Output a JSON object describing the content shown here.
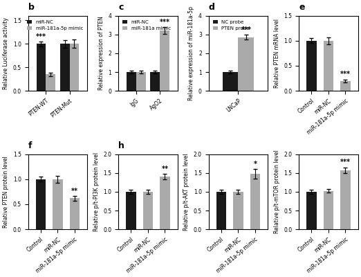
{
  "chart_data": [
    {
      "type": "bar",
      "title": "b",
      "categories": [
        "PTEN-WT",
        "PTEN-Mut"
      ],
      "ylabel": "Relative Luciferase activity",
      "ylim": [
        0,
        1.6
      ],
      "yticks": [
        {
          "value": 0,
          "label": "0.0"
        },
        0.5,
        {
          "value": 1,
          "label": "1.0"
        },
        1.5
      ],
      "legend": "upper right",
      "series": [
        {
          "name": "miR-NC",
          "color": "#1a1a1a",
          "values": [
            1.0,
            1.0
          ],
          "errors": [
            0.05,
            0.08
          ],
          "annotations": [
            "***",
            null
          ]
        },
        {
          "name": "miR-181a-5p mimic",
          "color": "#aaaaaa",
          "values": [
            0.35,
            1.0
          ],
          "errors": [
            0.04,
            0.09
          ],
          "annotations": [
            null,
            null
          ]
        }
      ]
    },
    {
      "type": "bar",
      "title": "c",
      "categories": [
        "IgG",
        "AgO2"
      ],
      "ylabel": "Relative expression of PTEN",
      "ylim": [
        0,
        4
      ],
      "yticks": [
        0,
        1,
        2,
        3,
        4
      ],
      "legend": "upper left",
      "series": [
        {
          "name": "miR-NC",
          "color": "#1a1a1a",
          "values": [
            1.0,
            1.0
          ],
          "errors": [
            0.08,
            0.07
          ],
          "annotations": [
            null,
            null
          ]
        },
        {
          "name": "miR-181a mimic",
          "color": "#aaaaaa",
          "values": [
            1.0,
            3.2
          ],
          "errors": [
            0.06,
            0.18
          ],
          "annotations": [
            null,
            "***"
          ]
        }
      ]
    },
    {
      "type": "bar",
      "title": "d",
      "categories": [
        "LNCaP"
      ],
      "ylabel": "Relative expression of miR-181a-5p",
      "ylim": [
        0,
        4
      ],
      "yticks": [
        0,
        1,
        2,
        3,
        4
      ],
      "legend": "upper left",
      "series": [
        {
          "name": "NC probe",
          "color": "#1a1a1a",
          "values": [
            1.0
          ],
          "errors": [
            0.07
          ],
          "annotations": [
            null
          ]
        },
        {
          "name": "PTEN probe",
          "color": "#aaaaaa",
          "values": [
            2.85
          ],
          "errors": [
            0.12
          ],
          "annotations": [
            "***"
          ]
        }
      ]
    },
    {
      "type": "bar",
      "title": "e",
      "categories": [
        "Control",
        "miR-NC",
        "miR-181a-5p mimic"
      ],
      "ylabel": "Relative PTEN mRNA level",
      "ylim": [
        0,
        1.5
      ],
      "yticks": [
        {
          "value": 0,
          "label": "0.0"
        },
        0.5,
        {
          "value": 1,
          "label": "1.0"
        },
        1.5
      ],
      "values": [
        1.0,
        1.0,
        0.2
      ],
      "errors": [
        0.05,
        0.07,
        0.03
      ],
      "annotations": [
        null,
        null,
        "***"
      ],
      "colors": [
        "#1a1a1a",
        "#aaaaaa",
        "#aaaaaa"
      ]
    },
    {
      "type": "bar",
      "title": "f",
      "categories": [
        "Control",
        "miR-NC",
        "miR-181a-5p mimic"
      ],
      "ylabel": "Relative PTEN protein level",
      "ylim": [
        0,
        1.5
      ],
      "yticks": [
        {
          "value": 0,
          "label": "0.0"
        },
        0.5,
        {
          "value": 1,
          "label": "1.0"
        },
        1.5
      ],
      "values": [
        1.0,
        1.0,
        0.62
      ],
      "errors": [
        0.05,
        0.07,
        0.05
      ],
      "annotations": [
        null,
        null,
        "**"
      ],
      "colors": [
        "#1a1a1a",
        "#aaaaaa",
        "#aaaaaa"
      ]
    },
    {
      "type": "bar",
      "title": "h",
      "categories": [
        "Control",
        "miR-NC",
        "miR-181a-5p mimic"
      ],
      "ylabel": "Relative p/t-PI3K protein level",
      "ylim": [
        0,
        2.0
      ],
      "yticks": [
        {
          "value": 0,
          "label": "0.0"
        },
        0.5,
        {
          "value": 1,
          "label": "1.0"
        },
        1.5,
        {
          "value": 2,
          "label": "2.0"
        }
      ],
      "values": [
        1.0,
        1.0,
        1.4
      ],
      "errors": [
        0.05,
        0.06,
        0.07
      ],
      "annotations": [
        null,
        null,
        "**"
      ],
      "colors": [
        "#1a1a1a",
        "#aaaaaa",
        "#aaaaaa"
      ]
    },
    {
      "type": "bar",
      "categories": [
        "Control",
        "miR-NC",
        "miR-181a-5p mimic"
      ],
      "ylabel": "Relative p/t-AKT protein level",
      "ylim": [
        0,
        2.0
      ],
      "yticks": [
        {
          "value": 0,
          "label": "0.0"
        },
        0.5,
        {
          "value": 1,
          "label": "1.0"
        },
        1.5,
        {
          "value": 2,
          "label": "2.0"
        }
      ],
      "values": [
        1.0,
        1.0,
        1.47
      ],
      "errors": [
        0.05,
        0.06,
        0.13
      ],
      "annotations": [
        null,
        null,
        "*"
      ],
      "colors": [
        "#1a1a1a",
        "#aaaaaa",
        "#aaaaaa"
      ]
    },
    {
      "type": "bar",
      "categories": [
        "Control",
        "miR-NC",
        "miR-181a-5p mimic"
      ],
      "ylabel": "Relative p/t-mTOR protein level",
      "ylim": [
        0,
        2.0
      ],
      "yticks": [
        {
          "value": 0,
          "label": "0.0"
        },
        0.5,
        {
          "value": 1,
          "label": "1.0"
        },
        1.5,
        {
          "value": 2,
          "label": "2.0"
        }
      ],
      "values": [
        1.0,
        1.02,
        1.57
      ],
      "errors": [
        0.05,
        0.05,
        0.08
      ],
      "annotations": [
        null,
        null,
        "***"
      ],
      "colors": [
        "#1a1a1a",
        "#aaaaaa",
        "#aaaaaa"
      ]
    }
  ]
}
